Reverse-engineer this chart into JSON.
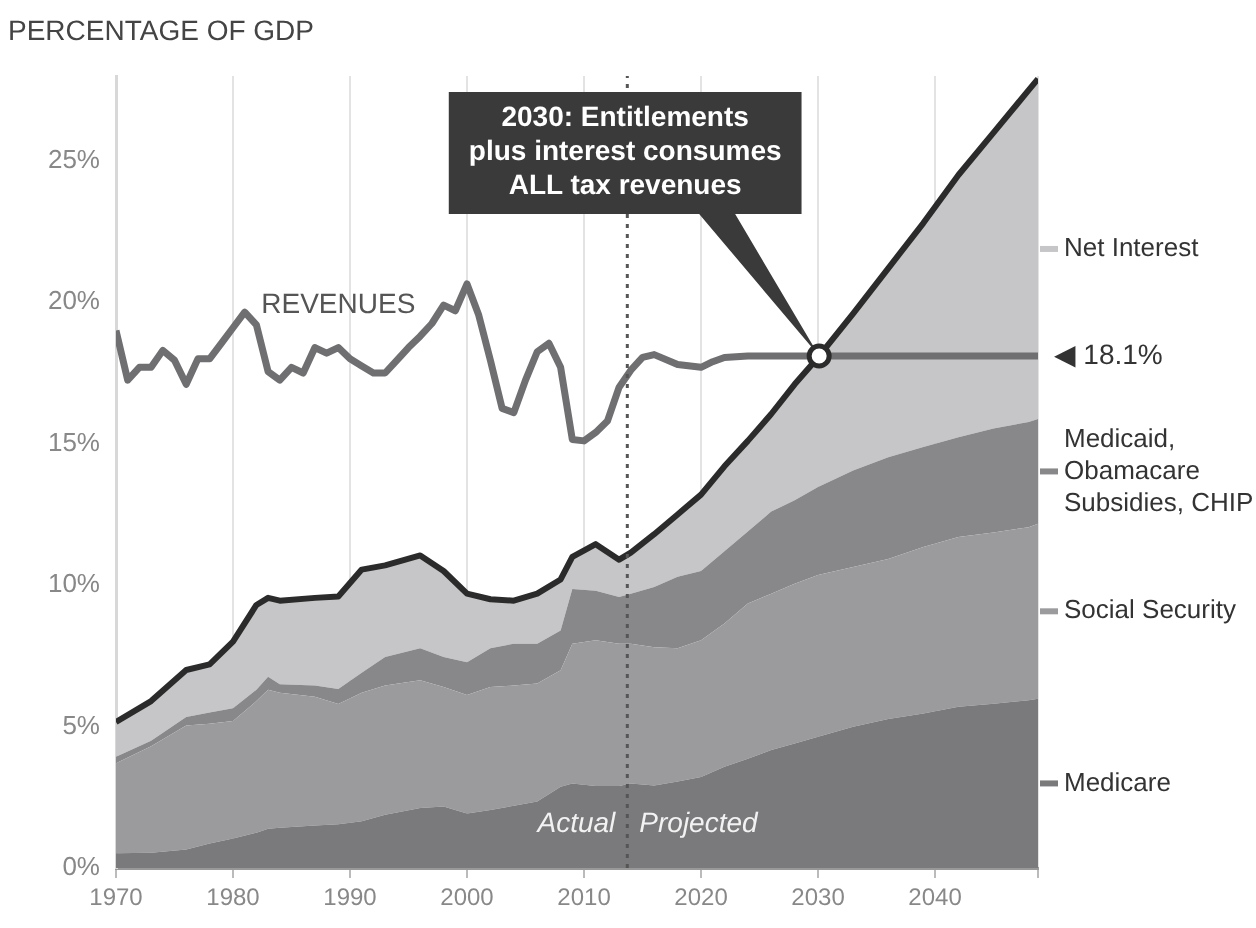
{
  "chart_data": {
    "type": "area",
    "stacked": true,
    "ylabel": "PERCENTAGE OF GDP",
    "x": [
      1970,
      1973,
      1976,
      1978,
      1980,
      1982,
      1983,
      1984,
      1987,
      1989,
      1991,
      1993,
      1996,
      1998,
      2000,
      2002,
      2004,
      2006,
      2008,
      2009,
      2011,
      2013,
      2014,
      2016,
      2018,
      2020,
      2022,
      2024,
      2026,
      2028,
      2030,
      2033,
      2036,
      2039,
      2042,
      2045,
      2048,
      2048.8
    ],
    "xlim": [
      1970,
      2048.8
    ],
    "xticks": [
      1970,
      1980,
      1990,
      2000,
      2010,
      2020,
      2030,
      2040,
      {
        "value": 2048.8,
        "label": null
      }
    ],
    "ylim": [
      0,
      28
    ],
    "yticks": [
      {
        "value": 0,
        "label": "0%"
      },
      {
        "value": 5,
        "label": "5%"
      },
      {
        "value": 10,
        "label": "10%"
      },
      {
        "value": 15,
        "label": "15%"
      },
      {
        "value": 20,
        "label": "20%"
      },
      {
        "value": 25,
        "label": "25%"
      }
    ],
    "grid": "x",
    "legend": "right",
    "series": [
      {
        "name": "Medicare",
        "color": "#7a7a7d",
        "values": [
          0.52,
          0.54,
          0.65,
          0.87,
          1.04,
          1.25,
          1.39,
          1.42,
          1.5,
          1.55,
          1.65,
          1.88,
          2.12,
          2.17,
          1.93,
          2.05,
          2.2,
          2.35,
          2.87,
          2.99,
          2.9,
          2.9,
          2.99,
          2.92,
          3.06,
          3.22,
          3.58,
          3.86,
          4.17,
          4.4,
          4.64,
          4.99,
          5.27,
          5.46,
          5.7,
          5.81,
          5.93,
          5.98
        ]
      },
      {
        "name": "Social Security",
        "color": "#9b9b9e",
        "values": [
          3.18,
          3.76,
          4.39,
          4.23,
          4.16,
          4.65,
          4.91,
          4.78,
          4.55,
          4.25,
          4.55,
          4.57,
          4.52,
          4.23,
          4.19,
          4.35,
          4.25,
          4.17,
          4.12,
          4.94,
          5.15,
          5.03,
          4.94,
          4.88,
          4.71,
          4.83,
          5.06,
          5.49,
          5.53,
          5.65,
          5.72,
          5.65,
          5.65,
          5.89,
          6.0,
          6.05,
          6.12,
          6.19
        ]
      },
      {
        "name": "Medicaid,\nObamacare\nSubsidies, CHIP",
        "color": "#88888b",
        "values": [
          0.23,
          0.2,
          0.3,
          0.4,
          0.45,
          0.4,
          0.46,
          0.3,
          0.4,
          0.53,
          0.7,
          1.01,
          1.13,
          1.06,
          1.15,
          1.37,
          1.48,
          1.41,
          1.41,
          1.93,
          1.75,
          1.65,
          1.77,
          2.13,
          2.53,
          2.45,
          2.56,
          2.55,
          2.9,
          2.95,
          3.11,
          3.41,
          3.6,
          3.53,
          3.53,
          3.68,
          3.72,
          3.7
        ]
      },
      {
        "name": "Net Interest",
        "color": "#c6c6c8",
        "values": [
          1.23,
          1.4,
          1.66,
          1.7,
          2.35,
          3.0,
          2.79,
          2.95,
          3.1,
          3.27,
          3.65,
          3.24,
          3.28,
          3.04,
          2.43,
          1.73,
          1.52,
          1.77,
          1.8,
          1.14,
          1.65,
          1.32,
          1.45,
          1.87,
          2.2,
          2.7,
          3.0,
          3.2,
          3.45,
          4.1,
          4.58,
          5.55,
          6.68,
          7.92,
          9.27,
          10.46,
          11.73,
          12.03
        ]
      },
      {
        "name": "REVENUES",
        "type": "line",
        "color": "#6f6f72",
        "x": [
          1970,
          1971,
          1972,
          1973,
          1974,
          1975,
          1976,
          1977,
          1978,
          1979,
          1980,
          1981,
          1982,
          1983,
          1984,
          1985,
          1986,
          1987,
          1988,
          1989,
          1990,
          1991,
          1992,
          1993,
          1994,
          1995,
          1996,
          1997,
          1998,
          1999,
          2000,
          2001,
          2002,
          2003,
          2004,
          2005,
          2006,
          2007,
          2008,
          2009,
          2010,
          2011,
          2012,
          2013,
          2014,
          2015,
          2016,
          2018,
          2020,
          2021,
          2022,
          2024,
          2048.8
        ],
        "values": [
          19.0,
          17.25,
          17.7,
          17.7,
          18.3,
          17.95,
          17.1,
          18.0,
          18.0,
          18.55,
          19.1,
          19.65,
          19.2,
          17.55,
          17.25,
          17.7,
          17.5,
          18.4,
          18.2,
          18.4,
          18.0,
          17.75,
          17.5,
          17.5,
          17.95,
          18.4,
          18.8,
          19.25,
          19.9,
          19.7,
          20.65,
          19.55,
          17.95,
          16.25,
          16.1,
          17.25,
          18.25,
          18.55,
          17.7,
          15.15,
          15.1,
          15.4,
          15.8,
          17.0,
          17.6,
          18.05,
          18.15,
          17.8,
          17.7,
          17.9,
          18.05,
          18.1,
          18.1
        ]
      }
    ],
    "ref_lines": [
      {
        "axis": "x",
        "value": 2013.7,
        "line_style": "dotted",
        "color": "#555555"
      }
    ],
    "annotations": [
      "2030: Entitlements\nplus interest consumes\nALL tax revenues",
      {
        "text": "◀ 18.1%",
        "x": 2048.8,
        "y": 18.1
      },
      "Actual",
      "Projected"
    ]
  }
}
